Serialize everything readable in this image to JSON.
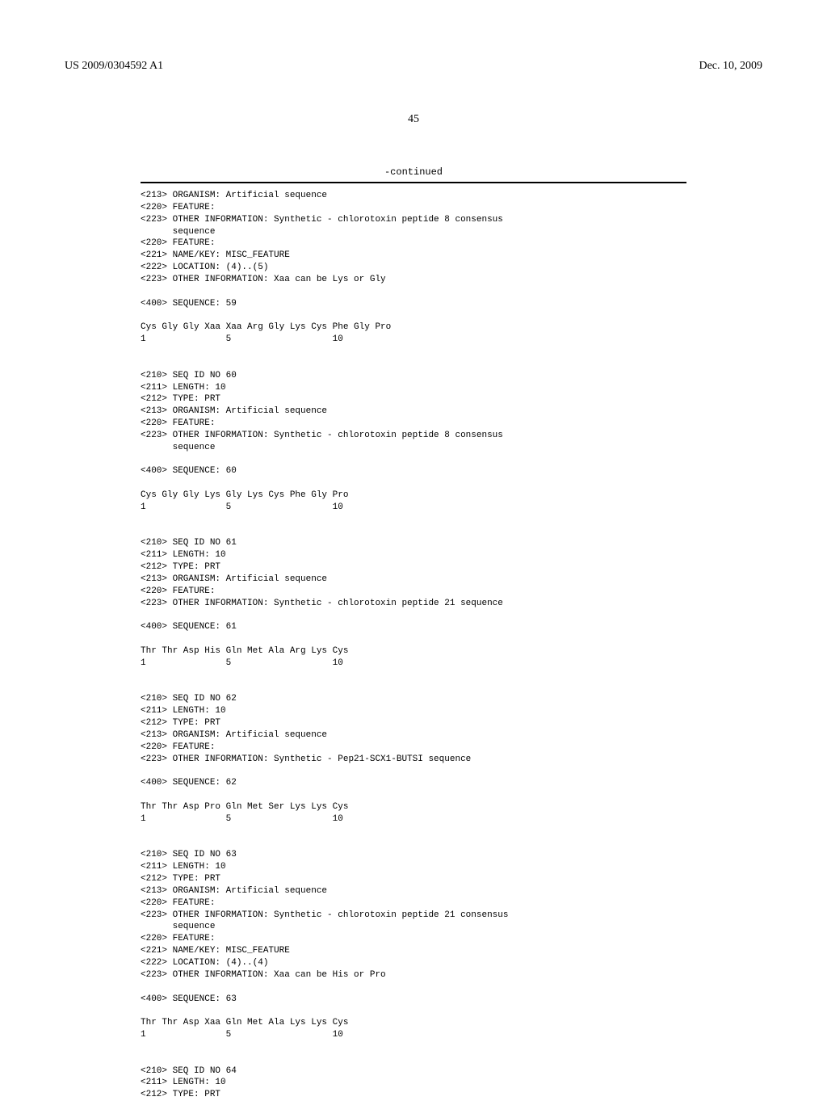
{
  "header": {
    "patent_number": "US 2009/0304592 A1",
    "patent_date": "Dec. 10, 2009"
  },
  "page_number": "45",
  "continued_label": "-continued",
  "sequence_text": "<213> ORGANISM: Artificial sequence\n<220> FEATURE:\n<223> OTHER INFORMATION: Synthetic - chlorotoxin peptide 8 consensus\n      sequence\n<220> FEATURE:\n<221> NAME/KEY: MISC_FEATURE\n<222> LOCATION: (4)..(5)\n<223> OTHER INFORMATION: Xaa can be Lys or Gly\n\n<400> SEQUENCE: 59\n\nCys Gly Gly Xaa Xaa Arg Gly Lys Cys Phe Gly Pro\n1               5                   10\n\n\n<210> SEQ ID NO 60\n<211> LENGTH: 10\n<212> TYPE: PRT\n<213> ORGANISM: Artificial sequence\n<220> FEATURE:\n<223> OTHER INFORMATION: Synthetic - chlorotoxin peptide 8 consensus\n      sequence\n\n<400> SEQUENCE: 60\n\nCys Gly Gly Lys Gly Lys Cys Phe Gly Pro\n1               5                   10\n\n\n<210> SEQ ID NO 61\n<211> LENGTH: 10\n<212> TYPE: PRT\n<213> ORGANISM: Artificial sequence\n<220> FEATURE:\n<223> OTHER INFORMATION: Synthetic - chlorotoxin peptide 21 sequence\n\n<400> SEQUENCE: 61\n\nThr Thr Asp His Gln Met Ala Arg Lys Cys\n1               5                   10\n\n\n<210> SEQ ID NO 62\n<211> LENGTH: 10\n<212> TYPE: PRT\n<213> ORGANISM: Artificial sequence\n<220> FEATURE:\n<223> OTHER INFORMATION: Synthetic - Pep21-SCX1-BUTSI sequence\n\n<400> SEQUENCE: 62\n\nThr Thr Asp Pro Gln Met Ser Lys Lys Cys\n1               5                   10\n\n\n<210> SEQ ID NO 63\n<211> LENGTH: 10\n<212> TYPE: PRT\n<213> ORGANISM: Artificial sequence\n<220> FEATURE:\n<223> OTHER INFORMATION: Synthetic - chlorotoxin peptide 21 consensus\n      sequence\n<220> FEATURE:\n<221> NAME/KEY: MISC_FEATURE\n<222> LOCATION: (4)..(4)\n<223> OTHER INFORMATION: Xaa can be His or Pro\n\n<400> SEQUENCE: 63\n\nThr Thr Asp Xaa Gln Met Ala Lys Lys Cys\n1               5                   10\n\n\n<210> SEQ ID NO 64\n<211> LENGTH: 10\n<212> TYPE: PRT"
}
